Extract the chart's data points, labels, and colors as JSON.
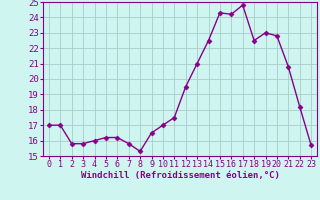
{
  "x": [
    0,
    1,
    2,
    3,
    4,
    5,
    6,
    7,
    8,
    9,
    10,
    11,
    12,
    13,
    14,
    15,
    16,
    17,
    18,
    19,
    20,
    21,
    22,
    23
  ],
  "y": [
    17.0,
    17.0,
    15.8,
    15.8,
    16.0,
    16.2,
    16.2,
    15.8,
    15.3,
    16.5,
    17.0,
    17.5,
    19.5,
    21.0,
    22.5,
    24.3,
    24.2,
    24.8,
    22.5,
    23.0,
    22.8,
    20.8,
    18.2,
    15.7
  ],
  "line_color": "#880088",
  "marker": "D",
  "markersize": 2.5,
  "linewidth": 1.0,
  "bg_color": "#cef5f0",
  "grid_color": "#aacccc",
  "xlabel": "Windchill (Refroidissement éolien,°C)",
  "xlabel_fontsize": 6.5,
  "tick_fontsize": 6.0,
  "ytick_fontsize": 6.5,
  "xlim": [
    -0.5,
    23.5
  ],
  "ylim": [
    15,
    25
  ],
  "yticks": [
    15,
    16,
    17,
    18,
    19,
    20,
    21,
    22,
    23,
    24,
    25
  ],
  "xticks": [
    0,
    1,
    2,
    3,
    4,
    5,
    6,
    7,
    8,
    9,
    10,
    11,
    12,
    13,
    14,
    15,
    16,
    17,
    18,
    19,
    20,
    21,
    22,
    23
  ]
}
